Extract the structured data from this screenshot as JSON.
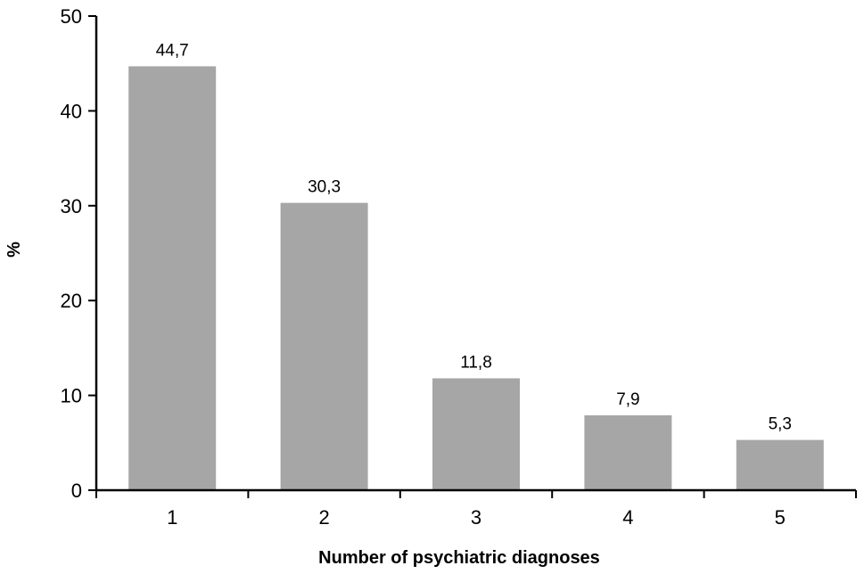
{
  "chart_data": {
    "type": "bar",
    "categories": [
      "1",
      "2",
      "3",
      "4",
      "5"
    ],
    "values": [
      44.7,
      30.3,
      11.8,
      7.9,
      5.3
    ],
    "data_labels": [
      "44,7",
      "30,3",
      "11,8",
      "7,9",
      "5,3"
    ],
    "title": "",
    "xlabel": "Number of psychiatric diagnoses",
    "ylabel": "%",
    "ylim": [
      0,
      50
    ],
    "yticks": [
      0,
      10,
      20,
      30,
      40,
      50
    ],
    "grid": false,
    "legend": "none",
    "bar_color": "#a6a6a6",
    "axis_color": "#000000"
  }
}
